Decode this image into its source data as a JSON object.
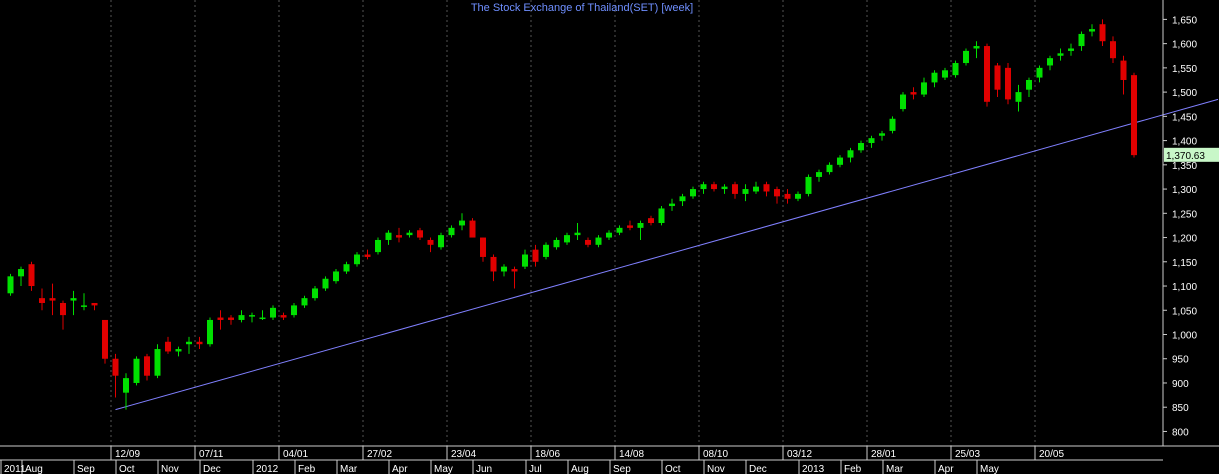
{
  "chart_data": {
    "type": "candlestick",
    "title": "The Stock Exchange of Thailand(SET) [week]",
    "y_axis": {
      "side": "right",
      "min": 770,
      "max": 1690,
      "ticks": [
        800,
        850,
        900,
        950,
        1000,
        1050,
        1100,
        1150,
        1200,
        1250,
        1300,
        1350,
        1400,
        1450,
        1500,
        1550,
        1600,
        1650
      ],
      "tick_labels": [
        "800",
        "850",
        "900",
        "950",
        "1,000",
        "1,050",
        "1,100",
        "1,150",
        "1,200",
        "1,250",
        "1,300",
        "1,350",
        "1,400",
        "1,450",
        "1,500",
        "1,550",
        "1,600",
        "1,650"
      ]
    },
    "last_price": 1370.63,
    "last_price_label": "1,370.63",
    "trendline": {
      "from": [
        10,
        845
      ],
      "to": [
        115,
        1485
      ]
    },
    "x_date_labels": [
      {
        "index": 10,
        "label": "12/09"
      },
      {
        "index": 18,
        "label": "07/11"
      },
      {
        "index": 26,
        "label": "04/01"
      },
      {
        "index": 34,
        "label": "27/02"
      },
      {
        "index": 42,
        "label": "23/04"
      },
      {
        "index": 50,
        "label": "18/06"
      },
      {
        "index": 58,
        "label": "14/08"
      },
      {
        "index": 66,
        "label": "08/10"
      },
      {
        "index": 74,
        "label": "03/12"
      },
      {
        "index": 82,
        "label": "28/01"
      },
      {
        "index": 90,
        "label": "25/03"
      },
      {
        "index": 98,
        "label": "20/05"
      }
    ],
    "x_month_labels": [
      {
        "index": 0,
        "label": "2011"
      },
      {
        "index": 2,
        "label": "Aug"
      },
      {
        "index": 7,
        "label": "Sep"
      },
      {
        "index": 11,
        "label": "Oct"
      },
      {
        "index": 15,
        "label": "Nov"
      },
      {
        "index": 19,
        "label": "Dec"
      },
      {
        "index": 24,
        "label": "2012"
      },
      {
        "index": 28,
        "label": "Feb"
      },
      {
        "index": 32,
        "label": "Mar"
      },
      {
        "index": 37,
        "label": "Apr"
      },
      {
        "index": 41,
        "label": "May"
      },
      {
        "index": 45,
        "label": "Jun"
      },
      {
        "index": 50,
        "label": "Jul"
      },
      {
        "index": 54,
        "label": "Aug"
      },
      {
        "index": 58,
        "label": "Sep"
      },
      {
        "index": 63,
        "label": "Oct"
      },
      {
        "index": 67,
        "label": "Nov"
      },
      {
        "index": 71,
        "label": "Dec"
      },
      {
        "index": 76,
        "label": "2013"
      },
      {
        "index": 80,
        "label": "Feb"
      },
      {
        "index": 84,
        "label": "Mar"
      },
      {
        "index": 89,
        "label": "Apr"
      },
      {
        "index": 93,
        "label": "May"
      }
    ],
    "candles": [
      {
        "o": 1085,
        "h": 1125,
        "l": 1080,
        "c": 1120
      },
      {
        "o": 1120,
        "h": 1140,
        "l": 1100,
        "c": 1135
      },
      {
        "o": 1145,
        "h": 1150,
        "l": 1090,
        "c": 1100
      },
      {
        "o": 1075,
        "h": 1095,
        "l": 1050,
        "c": 1065
      },
      {
        "o": 1075,
        "h": 1105,
        "l": 1040,
        "c": 1070
      },
      {
        "o": 1065,
        "h": 1070,
        "l": 1010,
        "c": 1040
      },
      {
        "o": 1070,
        "h": 1090,
        "l": 1040,
        "c": 1075
      },
      {
        "o": 1060,
        "h": 1085,
        "l": 1050,
        "c": 1060
      },
      {
        "o": 1065,
        "h": 1065,
        "l": 1050,
        "c": 1060
      },
      {
        "o": 1030,
        "h": 1030,
        "l": 940,
        "c": 950
      },
      {
        "o": 950,
        "h": 960,
        "l": 870,
        "c": 915
      },
      {
        "o": 880,
        "h": 920,
        "l": 845,
        "c": 910
      },
      {
        "o": 900,
        "h": 955,
        "l": 895,
        "c": 950
      },
      {
        "o": 955,
        "h": 960,
        "l": 905,
        "c": 915
      },
      {
        "o": 915,
        "h": 980,
        "l": 910,
        "c": 970
      },
      {
        "o": 985,
        "h": 995,
        "l": 960,
        "c": 965
      },
      {
        "o": 965,
        "h": 975,
        "l": 955,
        "c": 970
      },
      {
        "o": 980,
        "h": 995,
        "l": 960,
        "c": 985
      },
      {
        "o": 985,
        "h": 995,
        "l": 970,
        "c": 980
      },
      {
        "o": 980,
        "h": 1035,
        "l": 975,
        "c": 1030
      },
      {
        "o": 1035,
        "h": 1050,
        "l": 1010,
        "c": 1030
      },
      {
        "o": 1035,
        "h": 1040,
        "l": 1020,
        "c": 1030
      },
      {
        "o": 1030,
        "h": 1050,
        "l": 1025,
        "c": 1040
      },
      {
        "o": 1040,
        "h": 1045,
        "l": 1025,
        "c": 1040
      },
      {
        "o": 1035,
        "h": 1050,
        "l": 1030,
        "c": 1035
      },
      {
        "o": 1035,
        "h": 1060,
        "l": 1030,
        "c": 1055
      },
      {
        "o": 1040,
        "h": 1045,
        "l": 1030,
        "c": 1035
      },
      {
        "o": 1040,
        "h": 1065,
        "l": 1035,
        "c": 1060
      },
      {
        "o": 1060,
        "h": 1080,
        "l": 1055,
        "c": 1075
      },
      {
        "o": 1075,
        "h": 1100,
        "l": 1070,
        "c": 1095
      },
      {
        "o": 1095,
        "h": 1120,
        "l": 1090,
        "c": 1115
      },
      {
        "o": 1110,
        "h": 1135,
        "l": 1105,
        "c": 1130
      },
      {
        "o": 1130,
        "h": 1150,
        "l": 1125,
        "c": 1145
      },
      {
        "o": 1145,
        "h": 1170,
        "l": 1140,
        "c": 1165
      },
      {
        "o": 1165,
        "h": 1175,
        "l": 1155,
        "c": 1160
      },
      {
        "o": 1170,
        "h": 1200,
        "l": 1165,
        "c": 1195
      },
      {
        "o": 1195,
        "h": 1215,
        "l": 1185,
        "c": 1210
      },
      {
        "o": 1205,
        "h": 1220,
        "l": 1190,
        "c": 1200
      },
      {
        "o": 1205,
        "h": 1215,
        "l": 1200,
        "c": 1210
      },
      {
        "o": 1215,
        "h": 1220,
        "l": 1195,
        "c": 1200
      },
      {
        "o": 1195,
        "h": 1200,
        "l": 1170,
        "c": 1185
      },
      {
        "o": 1180,
        "h": 1210,
        "l": 1175,
        "c": 1205
      },
      {
        "o": 1205,
        "h": 1225,
        "l": 1200,
        "c": 1220
      },
      {
        "o": 1225,
        "h": 1250,
        "l": 1215,
        "c": 1235
      },
      {
        "o": 1235,
        "h": 1240,
        "l": 1200,
        "c": 1200
      },
      {
        "o": 1200,
        "h": 1200,
        "l": 1150,
        "c": 1160
      },
      {
        "o": 1160,
        "h": 1165,
        "l": 1110,
        "c": 1130
      },
      {
        "o": 1130,
        "h": 1145,
        "l": 1120,
        "c": 1140
      },
      {
        "o": 1135,
        "h": 1140,
        "l": 1095,
        "c": 1130
      },
      {
        "o": 1140,
        "h": 1175,
        "l": 1135,
        "c": 1165
      },
      {
        "o": 1175,
        "h": 1185,
        "l": 1140,
        "c": 1150
      },
      {
        "o": 1160,
        "h": 1190,
        "l": 1155,
        "c": 1185
      },
      {
        "o": 1180,
        "h": 1200,
        "l": 1175,
        "c": 1195
      },
      {
        "o": 1190,
        "h": 1210,
        "l": 1185,
        "c": 1205
      },
      {
        "o": 1205,
        "h": 1230,
        "l": 1195,
        "c": 1210
      },
      {
        "o": 1195,
        "h": 1200,
        "l": 1180,
        "c": 1185
      },
      {
        "o": 1185,
        "h": 1205,
        "l": 1180,
        "c": 1200
      },
      {
        "o": 1200,
        "h": 1215,
        "l": 1195,
        "c": 1210
      },
      {
        "o": 1210,
        "h": 1225,
        "l": 1205,
        "c": 1220
      },
      {
        "o": 1225,
        "h": 1235,
        "l": 1215,
        "c": 1220
      },
      {
        "o": 1220,
        "h": 1235,
        "l": 1195,
        "c": 1230
      },
      {
        "o": 1240,
        "h": 1245,
        "l": 1225,
        "c": 1230
      },
      {
        "o": 1230,
        "h": 1265,
        "l": 1225,
        "c": 1260
      },
      {
        "o": 1265,
        "h": 1280,
        "l": 1255,
        "c": 1270
      },
      {
        "o": 1275,
        "h": 1290,
        "l": 1265,
        "c": 1285
      },
      {
        "o": 1285,
        "h": 1305,
        "l": 1280,
        "c": 1300
      },
      {
        "o": 1300,
        "h": 1315,
        "l": 1290,
        "c": 1310
      },
      {
        "o": 1310,
        "h": 1315,
        "l": 1295,
        "c": 1300
      },
      {
        "o": 1300,
        "h": 1310,
        "l": 1290,
        "c": 1305
      },
      {
        "o": 1310,
        "h": 1315,
        "l": 1280,
        "c": 1290
      },
      {
        "o": 1290,
        "h": 1310,
        "l": 1275,
        "c": 1300
      },
      {
        "o": 1295,
        "h": 1315,
        "l": 1290,
        "c": 1305
      },
      {
        "o": 1310,
        "h": 1315,
        "l": 1285,
        "c": 1295
      },
      {
        "o": 1300,
        "h": 1305,
        "l": 1270,
        "c": 1285
      },
      {
        "o": 1290,
        "h": 1300,
        "l": 1270,
        "c": 1280
      },
      {
        "o": 1280,
        "h": 1295,
        "l": 1275,
        "c": 1290
      },
      {
        "o": 1290,
        "h": 1330,
        "l": 1285,
        "c": 1325
      },
      {
        "o": 1325,
        "h": 1340,
        "l": 1315,
        "c": 1335
      },
      {
        "o": 1335,
        "h": 1355,
        "l": 1330,
        "c": 1350
      },
      {
        "o": 1350,
        "h": 1370,
        "l": 1345,
        "c": 1365
      },
      {
        "o": 1365,
        "h": 1385,
        "l": 1355,
        "c": 1380
      },
      {
        "o": 1380,
        "h": 1400,
        "l": 1375,
        "c": 1395
      },
      {
        "o": 1395,
        "h": 1410,
        "l": 1385,
        "c": 1405
      },
      {
        "o": 1410,
        "h": 1420,
        "l": 1400,
        "c": 1415
      },
      {
        "o": 1420,
        "h": 1450,
        "l": 1415,
        "c": 1445
      },
      {
        "o": 1465,
        "h": 1500,
        "l": 1460,
        "c": 1495
      },
      {
        "o": 1500,
        "h": 1510,
        "l": 1485,
        "c": 1495
      },
      {
        "o": 1495,
        "h": 1530,
        "l": 1490,
        "c": 1520
      },
      {
        "o": 1520,
        "h": 1545,
        "l": 1510,
        "c": 1540
      },
      {
        "o": 1530,
        "h": 1550,
        "l": 1525,
        "c": 1545
      },
      {
        "o": 1535,
        "h": 1565,
        "l": 1530,
        "c": 1560
      },
      {
        "o": 1560,
        "h": 1590,
        "l": 1555,
        "c": 1585
      },
      {
        "o": 1590,
        "h": 1605,
        "l": 1570,
        "c": 1595
      },
      {
        "o": 1595,
        "h": 1600,
        "l": 1470,
        "c": 1480
      },
      {
        "o": 1555,
        "h": 1560,
        "l": 1490,
        "c": 1505
      },
      {
        "o": 1550,
        "h": 1560,
        "l": 1475,
        "c": 1485
      },
      {
        "o": 1480,
        "h": 1515,
        "l": 1460,
        "c": 1500
      },
      {
        "o": 1505,
        "h": 1530,
        "l": 1490,
        "c": 1525
      },
      {
        "o": 1530,
        "h": 1555,
        "l": 1520,
        "c": 1550
      },
      {
        "o": 1555,
        "h": 1575,
        "l": 1545,
        "c": 1570
      },
      {
        "o": 1575,
        "h": 1590,
        "l": 1565,
        "c": 1580
      },
      {
        "o": 1585,
        "h": 1600,
        "l": 1575,
        "c": 1590
      },
      {
        "o": 1595,
        "h": 1625,
        "l": 1585,
        "c": 1620
      },
      {
        "o": 1625,
        "h": 1640,
        "l": 1615,
        "c": 1630
      },
      {
        "o": 1640,
        "h": 1650,
        "l": 1595,
        "c": 1605
      },
      {
        "o": 1605,
        "h": 1615,
        "l": 1560,
        "c": 1570
      },
      {
        "o": 1565,
        "h": 1575,
        "l": 1495,
        "c": 1525
      },
      {
        "o": 1535,
        "h": 1540,
        "l": 1365,
        "c": 1370
      }
    ]
  }
}
